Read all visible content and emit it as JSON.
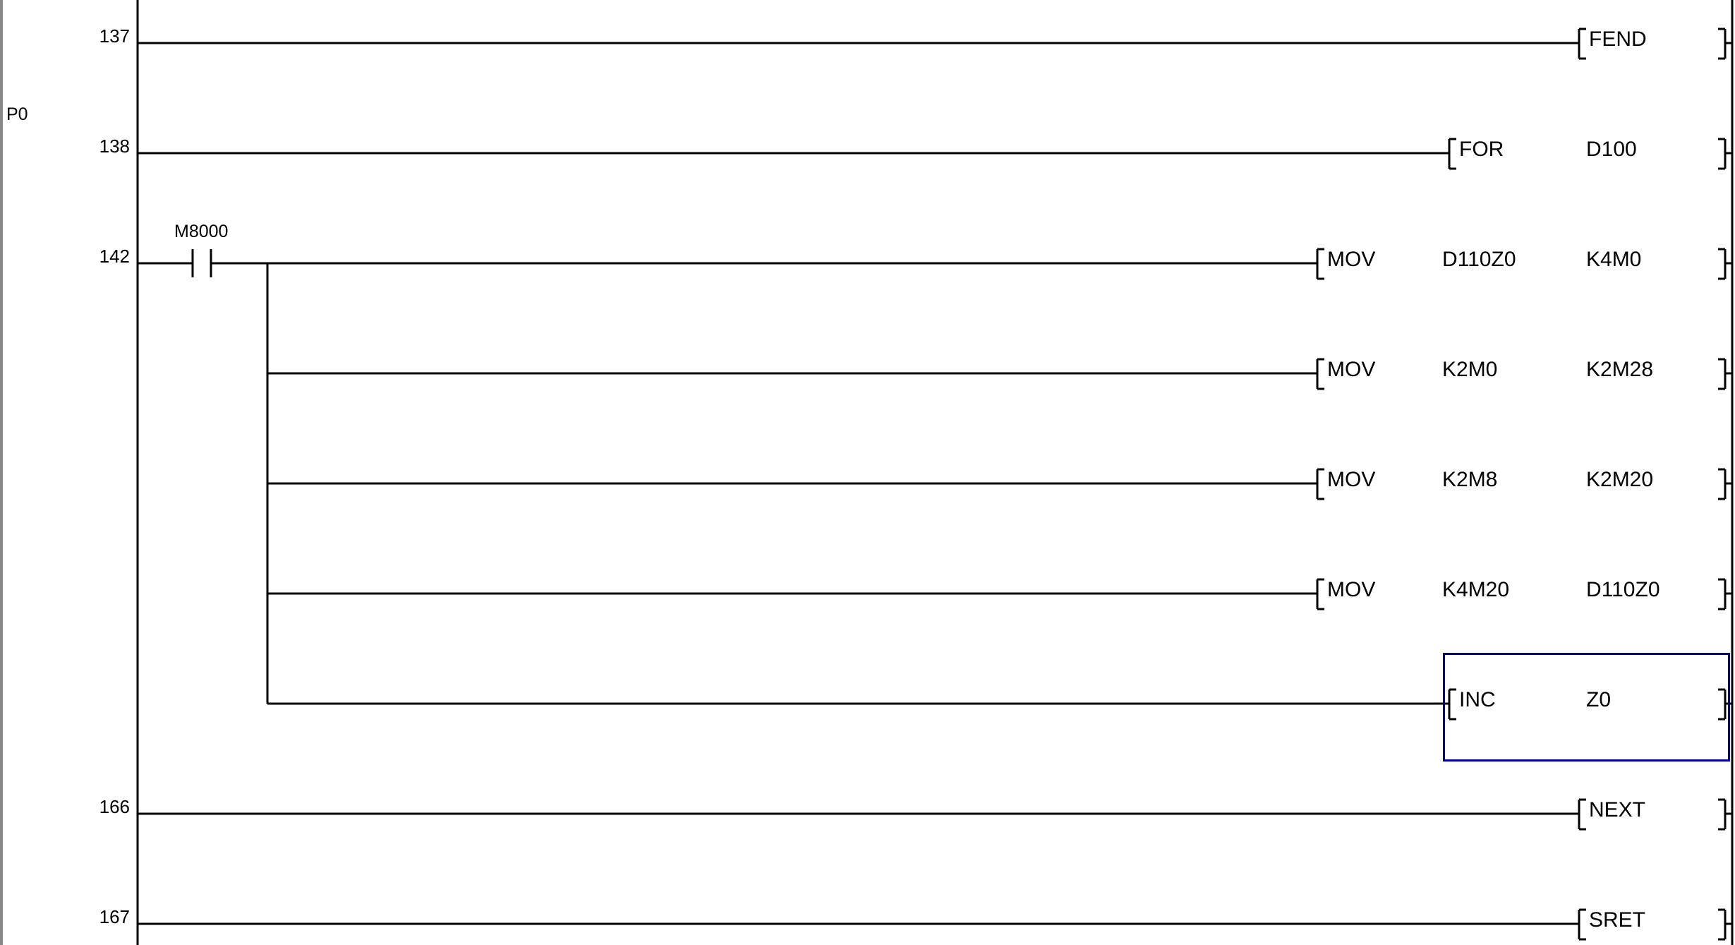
{
  "pointer_label": "P0",
  "selection_color": "#000099",
  "rungs": [
    {
      "step": "137",
      "instruction": {
        "mnemonic": "FEND",
        "operands": []
      }
    },
    {
      "step": "138",
      "instruction": {
        "mnemonic": "FOR",
        "operands": [
          "D100"
        ]
      }
    },
    {
      "step": "142",
      "contact": {
        "device": "M8000",
        "type": "normally-open"
      },
      "instruction": {
        "mnemonic": "MOV",
        "operands": [
          "D110Z0",
          "K4M0"
        ]
      }
    },
    {
      "step": "",
      "instruction": {
        "mnemonic": "MOV",
        "operands": [
          "K2M0",
          "K2M28"
        ]
      }
    },
    {
      "step": "",
      "instruction": {
        "mnemonic": "MOV",
        "operands": [
          "K2M8",
          "K2M20"
        ]
      }
    },
    {
      "step": "",
      "instruction": {
        "mnemonic": "MOV",
        "operands": [
          "K4M20",
          "D110Z0"
        ]
      }
    },
    {
      "step": "",
      "instruction": {
        "mnemonic": "INC",
        "operands": [
          "Z0"
        ]
      },
      "selected": true
    },
    {
      "step": "166",
      "instruction": {
        "mnemonic": "NEXT",
        "operands": []
      }
    },
    {
      "step": "167",
      "instruction": {
        "mnemonic": "SRET",
        "operands": []
      }
    }
  ]
}
